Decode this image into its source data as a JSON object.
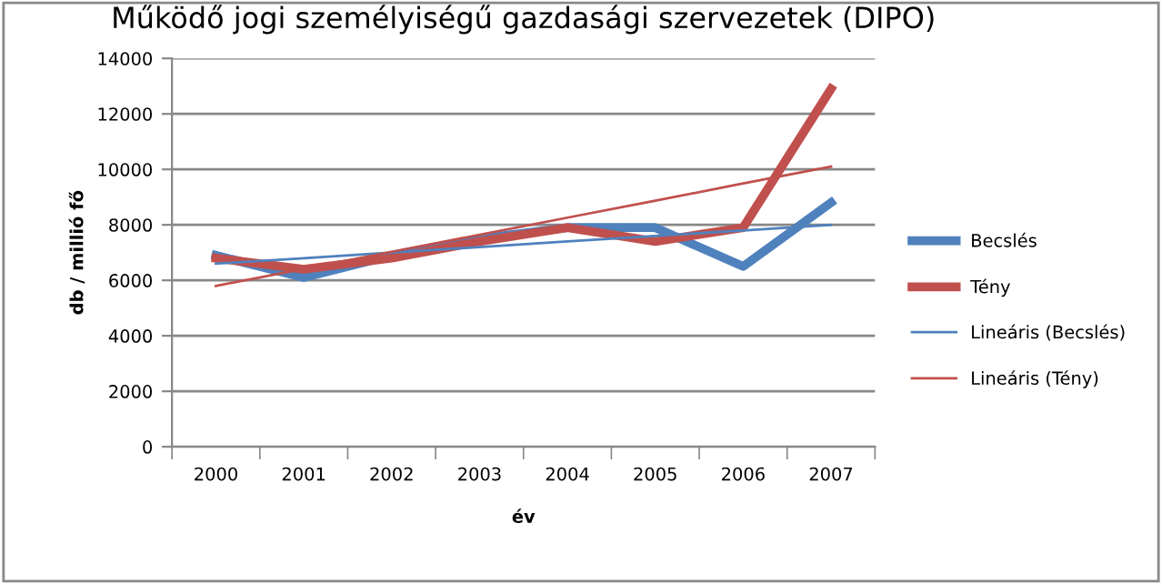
{
  "chart_data": {
    "type": "line",
    "title": "Működő jogi személyiségű gazdasági szervezetek (DIPO)",
    "xlabel": "év",
    "ylabel": "db / millió fő",
    "categories": [
      "2000",
      "2001",
      "2002",
      "2003",
      "2004",
      "2005",
      "2006",
      "2007"
    ],
    "series": [
      {
        "name": "Becslés",
        "color": "#4f81bd",
        "values": [
          6900,
          6100,
          6900,
          7500,
          7900,
          7900,
          6500,
          8800
        ]
      },
      {
        "name": "Tény",
        "color": "#c0504d",
        "values": [
          6800,
          6400,
          6800,
          7400,
          7900,
          7400,
          7900,
          12900
        ]
      },
      {
        "name": "Lineáris (Becslés)",
        "color": "#4f81bd",
        "values": [
          6600,
          6800,
          7000,
          7200,
          7400,
          7600,
          7800,
          8000
        ]
      },
      {
        "name": "Lineáris (Tény)",
        "color": "#c0504d",
        "values": [
          5800,
          6410,
          7030,
          7640,
          8260,
          8870,
          9490,
          10100
        ]
      }
    ],
    "ylim": [
      0,
      14000
    ],
    "yticks": [
      0,
      2000,
      4000,
      6000,
      8000,
      10000,
      12000,
      14000
    ],
    "grid": "y",
    "legend": "right",
    "marker": "none",
    "line_style": "solid"
  }
}
